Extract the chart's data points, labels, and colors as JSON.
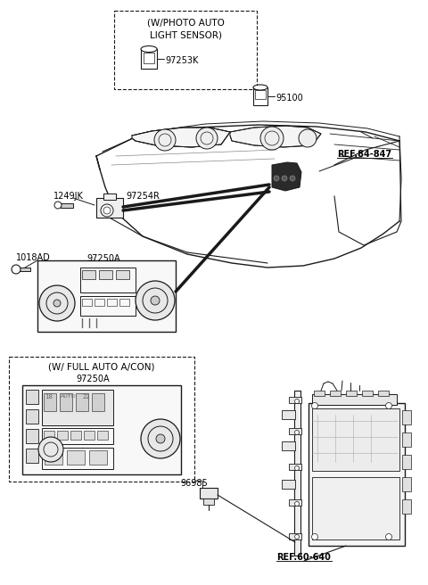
{
  "background_color": "#ffffff",
  "line_color": "#1a1a1a",
  "figsize": [
    4.8,
    6.56
  ],
  "dpi": 100,
  "labels": {
    "photo_box_title1": "(W/PHOTO AUTO",
    "photo_box_title2": "LIGHT SENSOR)",
    "photo_box_part": "97253K",
    "part_95100": "95100",
    "ref_84847": "REF.84-847",
    "part_1249JK": "1249JK",
    "part_97254R": "97254R",
    "part_1018AD": "1018AD",
    "part_97250A_main": "97250A",
    "full_auto_box_title": "(W/ FULL AUTO A/CON)",
    "part_97250A_sub": "97250A",
    "part_96985": "96985",
    "ref_60640": "REF.60-640"
  }
}
